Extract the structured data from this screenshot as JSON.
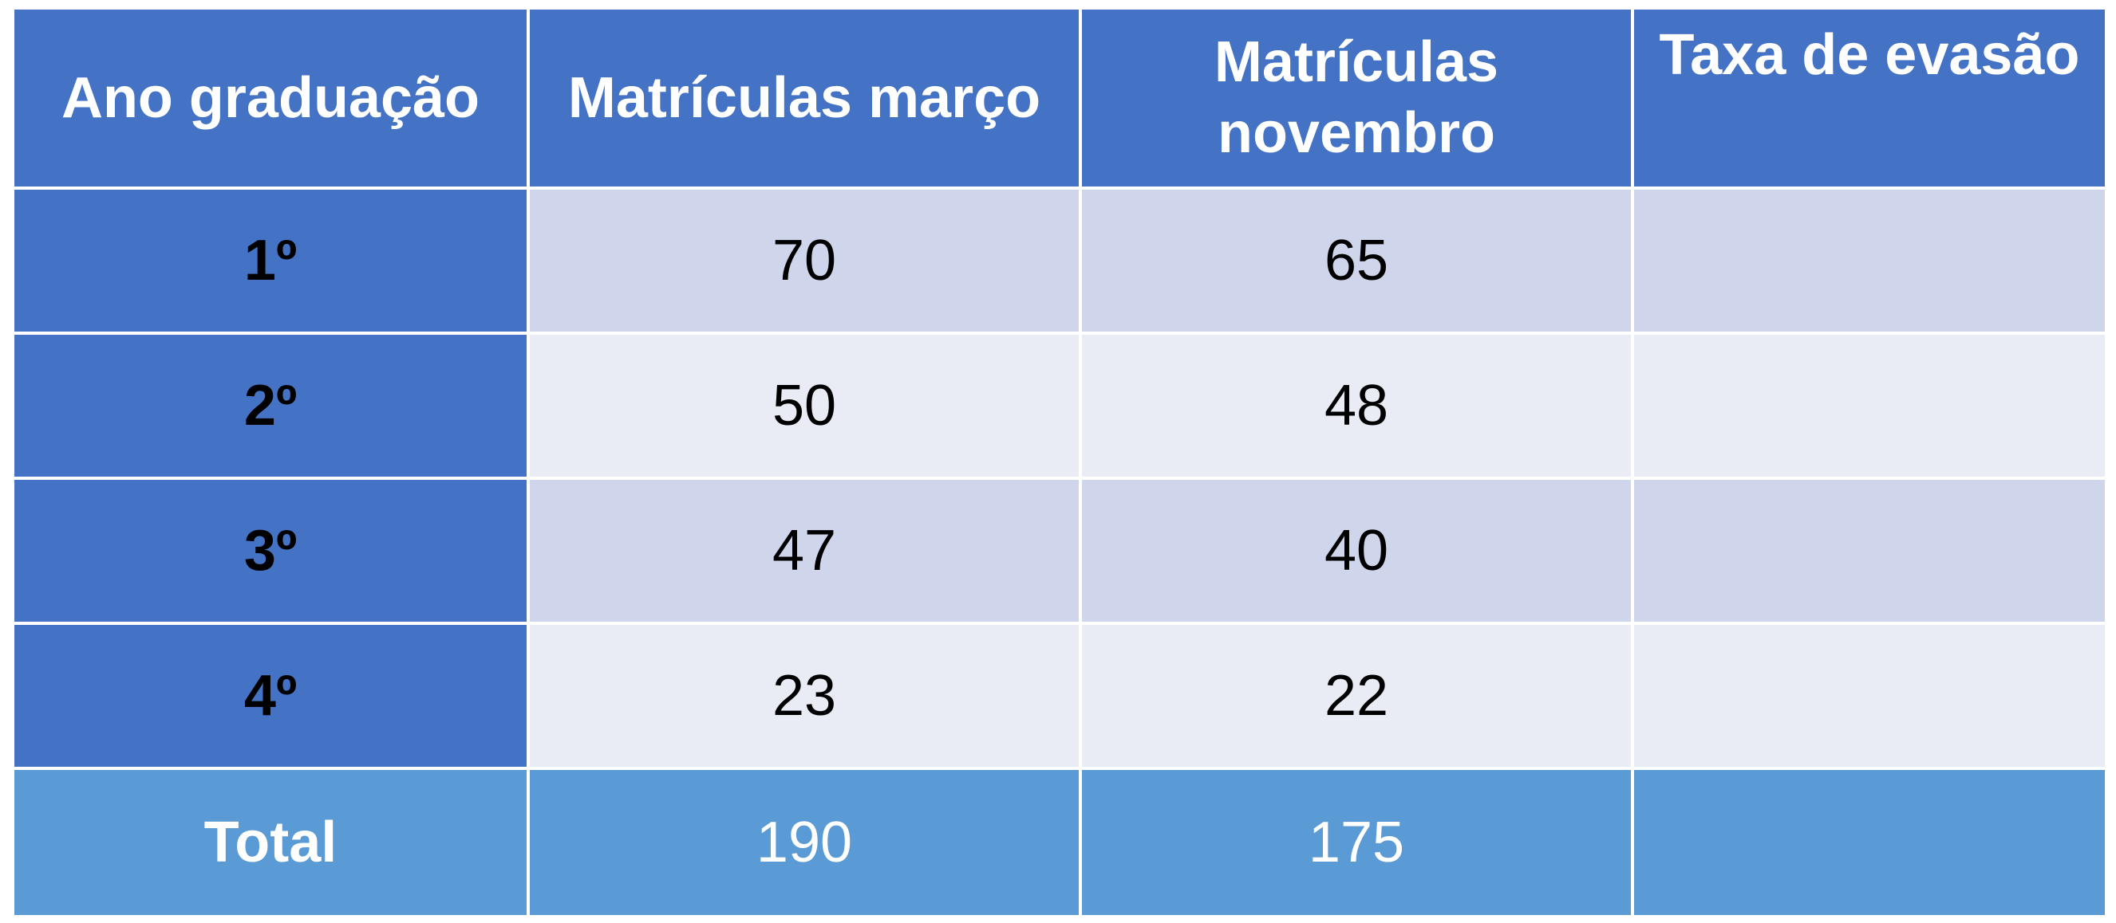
{
  "headers": {
    "ano": "Ano graduação",
    "marco": "Matrículas março",
    "novembro_line1": "Matrículas",
    "novembro_line2": "novembro",
    "evasao": "Taxa de evasão"
  },
  "rows": [
    {
      "ano": "1º",
      "marco": "70",
      "novembro": "65",
      "evasao": ""
    },
    {
      "ano": "2º",
      "marco": "50",
      "novembro": "48",
      "evasao": ""
    },
    {
      "ano": "3º",
      "marco": "47",
      "novembro": "40",
      "evasao": ""
    },
    {
      "ano": "4º",
      "marco": "23",
      "novembro": "22",
      "evasao": ""
    }
  ],
  "total": {
    "label": "Total",
    "marco": "190",
    "novembro": "175",
    "evasao": ""
  },
  "colors": {
    "header_blue": "#4472c4",
    "row_dark": "#cfd5ea",
    "row_light": "#e9ebf5",
    "total_blue": "#5b9bd5"
  }
}
